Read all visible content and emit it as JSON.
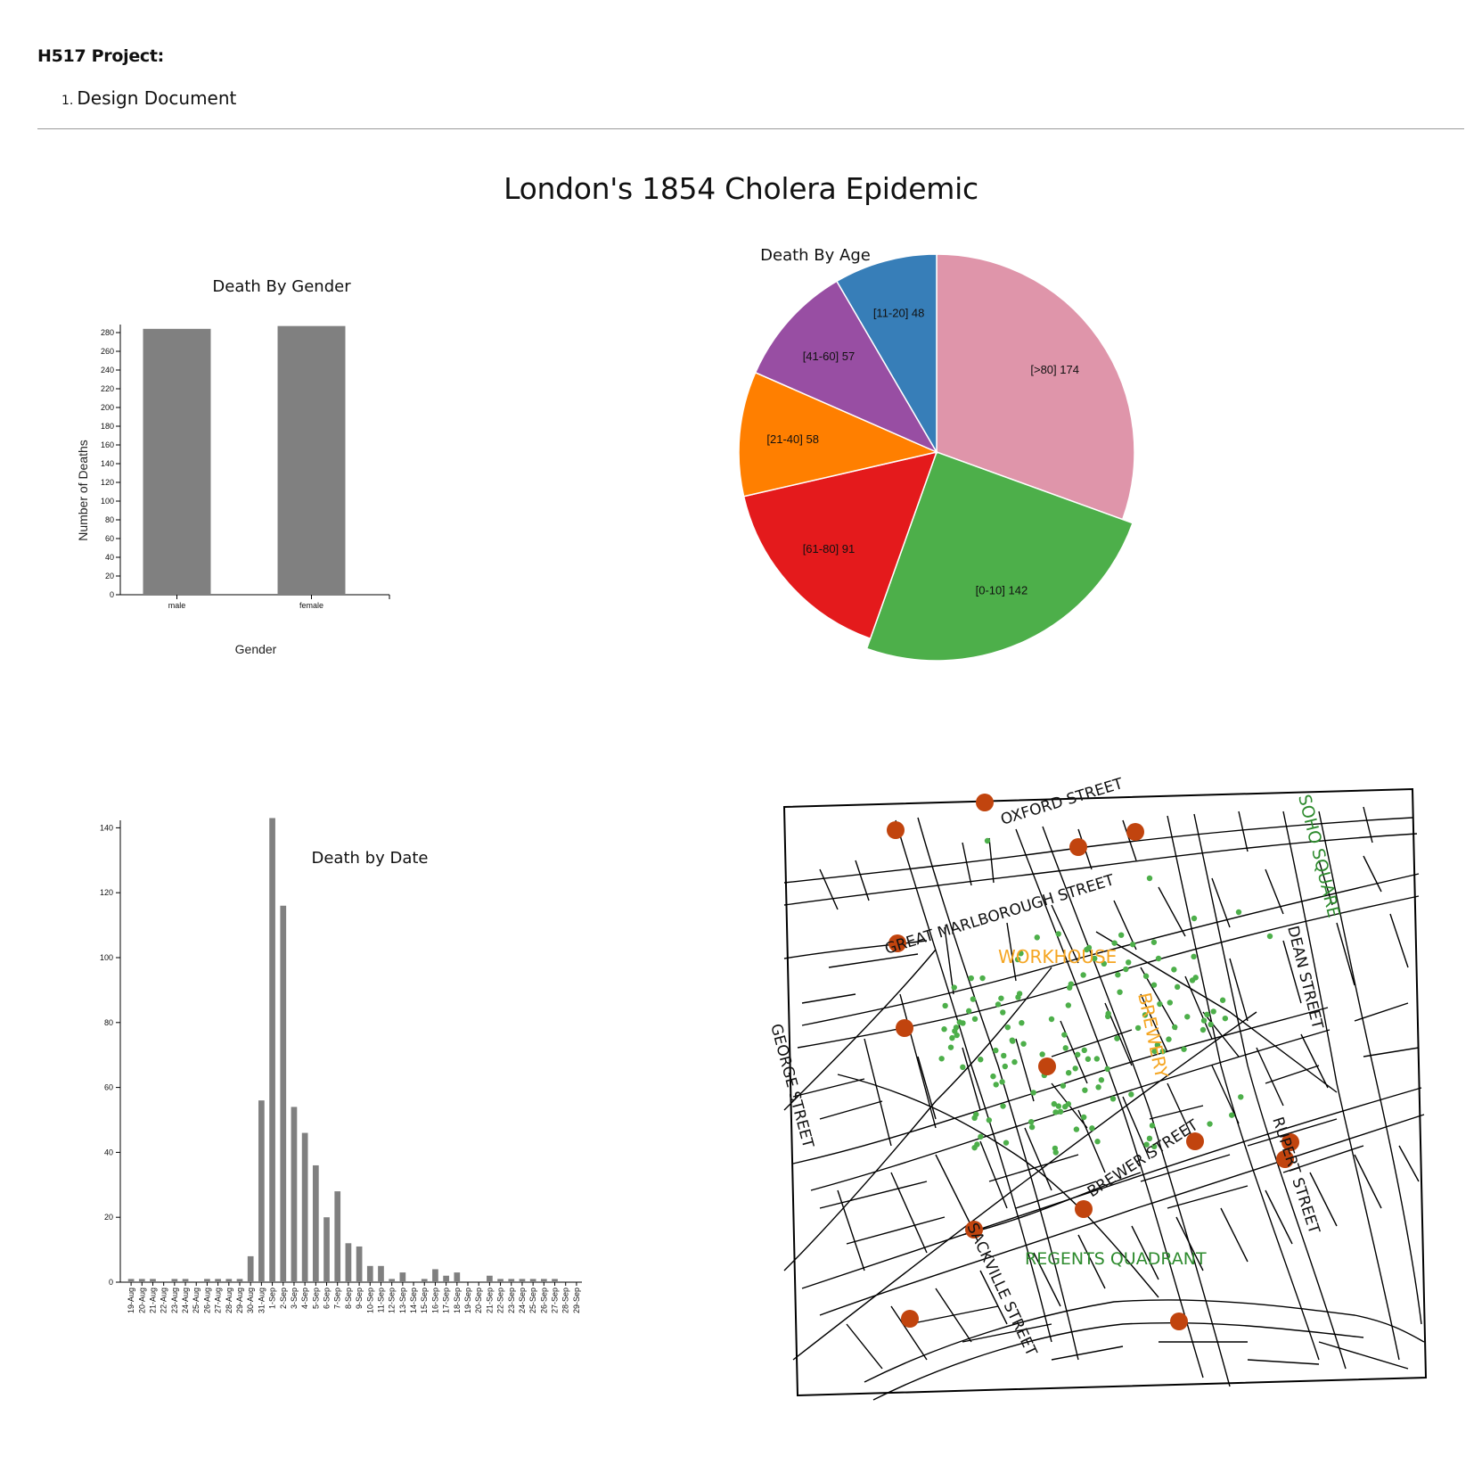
{
  "header": {
    "project_label": "H517 Project:",
    "nav_items": [
      {
        "number": "1.",
        "label": "Design Document"
      }
    ]
  },
  "page_title": "London's 1854 Cholera Epidemic",
  "chart_data": [
    {
      "type": "bar",
      "title": "Death By Gender",
      "xlabel": "Gender",
      "ylabel": "Number of Deaths",
      "categories": [
        "male",
        "female"
      ],
      "values": [
        284,
        287
      ],
      "ylim": [
        0,
        280
      ],
      "yticks": [
        0,
        20,
        40,
        60,
        80,
        100,
        120,
        140,
        160,
        180,
        200,
        220,
        240,
        260,
        280
      ],
      "color": "#808080"
    },
    {
      "type": "pie",
      "title": "Death By Age",
      "slices": [
        {
          "label": "[>80]",
          "value": 174,
          "color": "#df95aa"
        },
        {
          "label": "[0-10]",
          "value": 142,
          "color": "#4daf4a"
        },
        {
          "label": "[61-80]",
          "value": 91,
          "color": "#e41a1c"
        },
        {
          "label": "[21-40]",
          "value": 58,
          "color": "#ff7f00"
        },
        {
          "label": "[41-60]",
          "value": 57,
          "color": "#984ea3"
        },
        {
          "label": "[11-20]",
          "value": 48,
          "color": "#377eb8"
        }
      ]
    },
    {
      "type": "bar",
      "title": "Death by Date",
      "categories": [
        "19-Aug",
        "20-Aug",
        "21-Aug",
        "22-Aug",
        "23-Aug",
        "24-Aug",
        "25-Aug",
        "26-Aug",
        "27-Aug",
        "28-Aug",
        "29-Aug",
        "30-Aug",
        "31-Aug",
        "1-Sep",
        "2-Sep",
        "3-Sep",
        "4-Sep",
        "5-Sep",
        "6-Sep",
        "7-Sep",
        "8-Sep",
        "9-Sep",
        "10-Sep",
        "11-Sep",
        "12-Sep",
        "13-Sep",
        "14-Sep",
        "15-Sep",
        "16-Sep",
        "17-Sep",
        "18-Sep",
        "19-Sep",
        "20-Sep",
        "21-Sep",
        "22-Sep",
        "23-Sep",
        "24-Sep",
        "25-Sep",
        "26-Sep",
        "27-Sep",
        "28-Sep",
        "29-Sep"
      ],
      "values": [
        1,
        1,
        1,
        0,
        1,
        1,
        0,
        1,
        1,
        1,
        1,
        8,
        56,
        143,
        116,
        54,
        46,
        36,
        20,
        28,
        12,
        11,
        5,
        5,
        1,
        3,
        0,
        1,
        4,
        2,
        3,
        0,
        0,
        2,
        1,
        1,
        1,
        1,
        1,
        1,
        0,
        0
      ],
      "ylim": [
        0,
        143
      ],
      "yticks": [
        0,
        20,
        40,
        60,
        80,
        100,
        120,
        140
      ],
      "color": "#808080"
    }
  ],
  "map": {
    "street_labels": [
      "OXFORD STREET",
      "GREAT MARLBOROUGH STREET",
      "DEAN STREET",
      "GEORGE STREET",
      "RUPERT STREET",
      "BREWER STREET",
      "SACKVILLE STREET"
    ],
    "green_labels": [
      "SOHO SQUARE",
      "REGENTS QUADRANT"
    ],
    "orange_labels": [
      "WORKHOUSE",
      "BREWERY"
    ],
    "pump_color": "#c1440e",
    "death_color": "#4daf4a",
    "street_color": "#000000"
  }
}
